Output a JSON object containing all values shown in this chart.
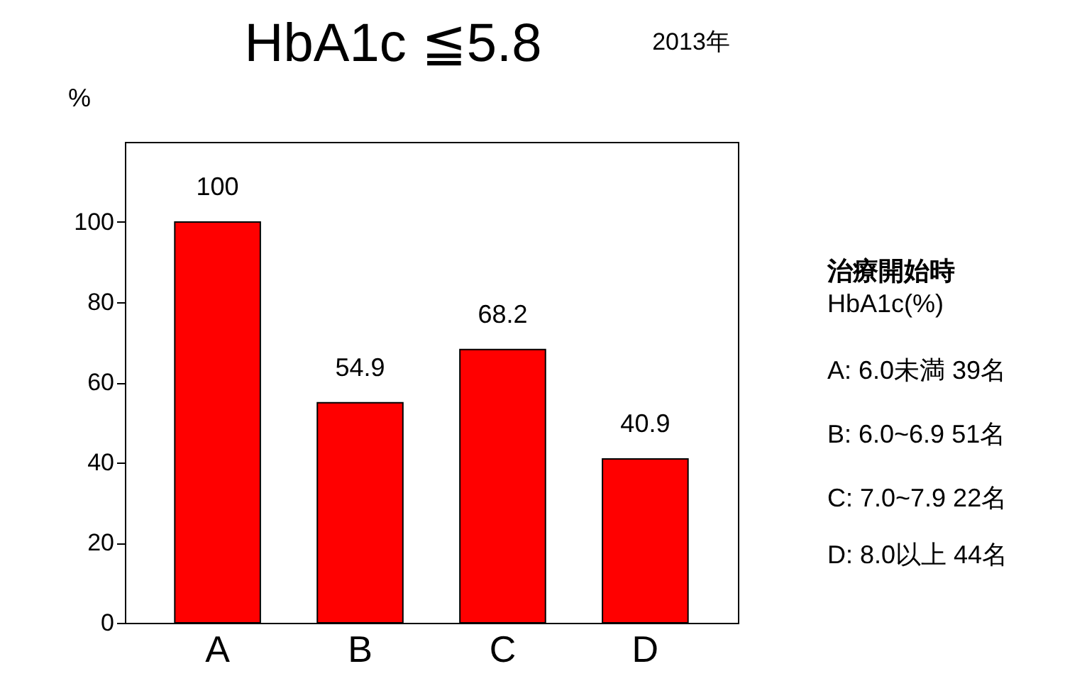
{
  "chart_data": {
    "type": "bar",
    "title": "HbA1c ≦5.8",
    "subtitle": "2013年",
    "ylabel": "%",
    "categories": [
      "A",
      "B",
      "C",
      "D"
    ],
    "values": [
      100,
      54.9,
      68.2,
      40.9
    ],
    "color": "#ff0000",
    "ylim": [
      0,
      120
    ],
    "yticks": [
      0,
      20,
      40,
      60,
      80,
      100
    ],
    "grid": false,
    "data_labels": true,
    "annotations": [
      "治療開始時",
      "HbA1c(%)",
      "A: 6.0未満 39名",
      "B: 6.0~6.9 51名",
      "C: 7.0~7.9 22名",
      "D: 8.0以上 44名"
    ]
  }
}
